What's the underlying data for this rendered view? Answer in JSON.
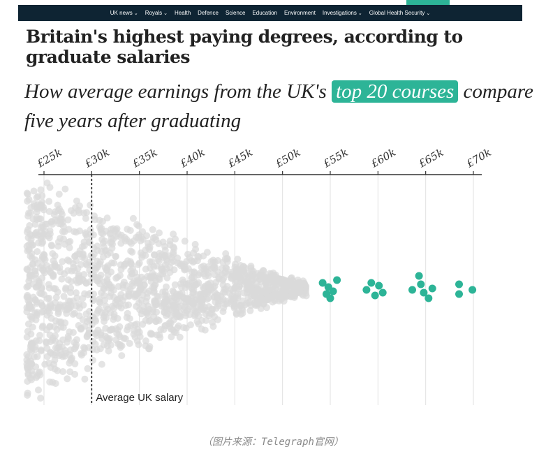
{
  "nav": {
    "items": [
      {
        "label": "UK news",
        "dropdown": true
      },
      {
        "label": "Royals",
        "dropdown": true
      },
      {
        "label": "Health",
        "dropdown": false
      },
      {
        "label": "Defence",
        "dropdown": false
      },
      {
        "label": "Science",
        "dropdown": false
      },
      {
        "label": "Education",
        "dropdown": false
      },
      {
        "label": "Environment",
        "dropdown": false
      },
      {
        "label": "Investigations",
        "dropdown": true
      },
      {
        "label": "Global Health Security",
        "dropdown": true
      }
    ],
    "background": "#0e2433",
    "accent": "#2db497"
  },
  "headline": "Britain's highest paying degrees, according to graduate salaries",
  "subhead": {
    "before": "How average earnings from the UK's ",
    "highlight": "top 20 courses",
    "after": " compare five years after graduating"
  },
  "caption": "（图片来源：Telegraph官网）",
  "colors": {
    "highlight": "#2db497",
    "other_courses": "#d9d9d9",
    "gridline": "#e2e2e2",
    "axis": "#333333"
  },
  "chart_data": {
    "type": "scatter",
    "title": "",
    "xlabel": "",
    "ylabel": "",
    "x_ticks": [
      {
        "value": 25000,
        "label": "£25k"
      },
      {
        "value": 30000,
        "label": "£30k"
      },
      {
        "value": 35000,
        "label": "£35k"
      },
      {
        "value": 40000,
        "label": "£40k"
      },
      {
        "value": 45000,
        "label": "£45k"
      },
      {
        "value": 50000,
        "label": "£50k"
      },
      {
        "value": 55000,
        "label": "£55k"
      },
      {
        "value": 60000,
        "label": "£60k"
      },
      {
        "value": 65000,
        "label": "£65k"
      },
      {
        "value": 70000,
        "label": "£70k"
      }
    ],
    "xlim": [
      23200,
      71000
    ],
    "axis_position": "top",
    "grid": true,
    "reference_line": {
      "value": 30000,
      "label": "Average UK salary"
    },
    "highlight_label": "top 20 courses",
    "top_courses_salaries": [
      54200,
      54600,
      54800,
      55000,
      55300,
      55700,
      58800,
      59300,
      59700,
      60100,
      60500,
      63600,
      64300,
      64500,
      64800,
      65300,
      65700,
      68500,
      68500,
      69900
    ],
    "other_courses_distribution": {
      "min": 23200,
      "max": 52500,
      "density_note_bins": [
        {
          "from": 23200,
          "to": 30000,
          "relative_density": "highest"
        },
        {
          "from": 30000,
          "to": 40000,
          "relative_density": "high"
        },
        {
          "from": 40000,
          "to": 47000,
          "relative_density": "medium"
        },
        {
          "from": 47000,
          "to": 52500,
          "relative_density": "low"
        }
      ]
    }
  }
}
